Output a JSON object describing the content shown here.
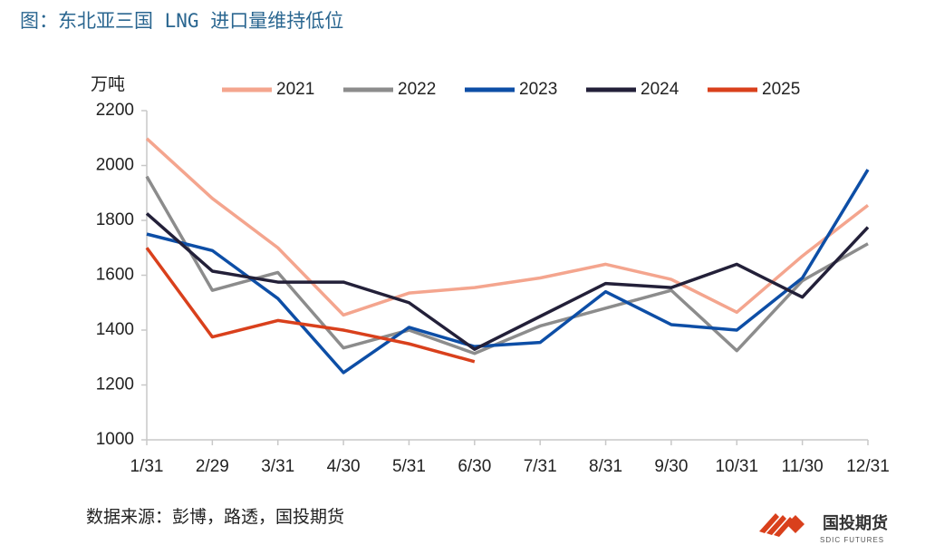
{
  "chart_data": {
    "type": "line",
    "title": "图：东北亚三国 LNG 进口量维持低位",
    "y_label": "万吨",
    "source": "数据来源：彭博，路透，国投期货",
    "logo": {
      "name": "国投期货",
      "subtitle": "SDIC FUTURES"
    },
    "categories": [
      "1/31",
      "2/29",
      "3/31",
      "4/30",
      "5/31",
      "6/30",
      "7/31",
      "8/31",
      "9/30",
      "10/31",
      "11/30",
      "12/31"
    ],
    "ylim": [
      1000,
      2200
    ],
    "yticks": [
      1000,
      1200,
      1400,
      1600,
      1800,
      2000,
      2200
    ],
    "legend": "top",
    "series": [
      {
        "name": "2021",
        "color": "#f4a58e",
        "values": [
          2098,
          1880,
          1700,
          1455,
          1535,
          1555,
          1590,
          1640,
          1585,
          1465,
          1670,
          1855
        ]
      },
      {
        "name": "2022",
        "color": "#8c8c8c",
        "values": [
          1960,
          1545,
          1610,
          1335,
          1400,
          1315,
          1415,
          1480,
          1545,
          1325,
          1580,
          1715
        ]
      },
      {
        "name": "2023",
        "color": "#0d4ea6",
        "values": [
          1750,
          1690,
          1515,
          1245,
          1410,
          1340,
          1355,
          1540,
          1420,
          1400,
          1590,
          1985
        ]
      },
      {
        "name": "2024",
        "color": "#232039",
        "values": [
          1825,
          1615,
          1575,
          1575,
          1500,
          1330,
          1450,
          1570,
          1555,
          1640,
          1520,
          1775
        ]
      },
      {
        "name": "2025",
        "color": "#d9401c",
        "values": [
          1700,
          1375,
          1435,
          1400,
          1350,
          1285,
          null,
          null,
          null,
          null,
          null,
          null
        ]
      }
    ]
  }
}
